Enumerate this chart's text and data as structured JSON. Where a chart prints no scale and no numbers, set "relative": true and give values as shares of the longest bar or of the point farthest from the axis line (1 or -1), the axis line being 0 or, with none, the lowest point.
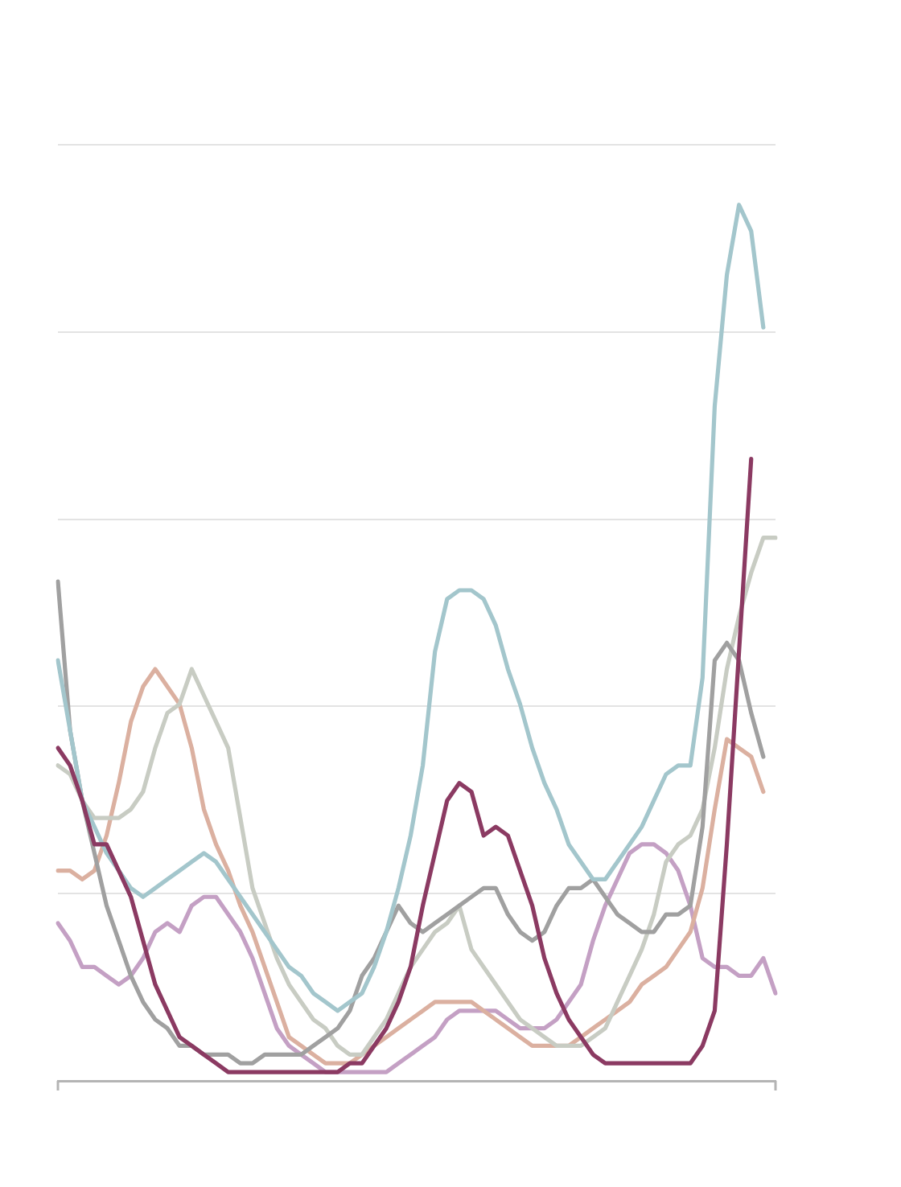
{
  "chart_data": {
    "type": "line",
    "relative": true,
    "grid": "y",
    "marker": "none",
    "line_style": "solid",
    "categories": [
      null,
      null,
      null,
      null,
      null,
      null,
      null,
      null,
      null,
      null,
      null,
      null,
      null,
      null,
      null,
      null,
      null,
      null,
      null,
      null,
      null,
      null,
      null,
      null,
      null,
      null,
      null,
      null,
      null,
      null,
      null,
      null,
      null,
      null,
      null,
      null,
      null,
      null,
      null,
      null,
      null,
      null,
      null,
      null,
      null,
      null,
      null,
      null,
      null,
      null,
      null,
      null,
      null,
      null,
      null,
      null,
      null,
      null,
      null,
      null
    ],
    "series": [
      {
        "color": "#8b3a62",
        "values": [
          0.38,
          0.36,
          0.32,
          0.27,
          0.27,
          0.24,
          0.21,
          0.16,
          0.11,
          0.08,
          0.05,
          0.04,
          0.03,
          0.02,
          0.01,
          0.01,
          0.01,
          0.01,
          0.01,
          0.01,
          0.01,
          0.01,
          0.01,
          0.01,
          0.02,
          0.02,
          0.04,
          0.06,
          0.09,
          0.13,
          0.2,
          0.26,
          0.32,
          0.34,
          0.33,
          0.28,
          0.29,
          0.28,
          0.24,
          0.2,
          0.14,
          0.1,
          0.07,
          0.05,
          0.03,
          0.02,
          0.02,
          0.02,
          0.02,
          0.02,
          0.02,
          0.02,
          0.02,
          0.04,
          0.08,
          0.27,
          0.49,
          0.71,
          null,
          null
        ]
      },
      {
        "color": "#a3c6cc",
        "values": [
          0.48,
          0.4,
          0.32,
          0.29,
          0.26,
          0.24,
          0.22,
          0.21,
          0.22,
          0.23,
          0.24,
          0.25,
          0.26,
          0.25,
          0.23,
          0.21,
          0.19,
          0.17,
          0.15,
          0.13,
          0.12,
          0.1,
          0.09,
          0.08,
          0.09,
          0.1,
          0.13,
          0.17,
          0.22,
          0.28,
          0.36,
          0.49,
          0.55,
          0.56,
          0.56,
          0.55,
          0.52,
          0.47,
          0.43,
          0.38,
          0.34,
          0.31,
          0.27,
          0.25,
          0.23,
          0.23,
          0.25,
          0.27,
          0.29,
          0.32,
          0.35,
          0.36,
          0.36,
          0.46,
          0.77,
          0.92,
          1,
          0.97,
          0.86,
          null
        ]
      },
      {
        "color": "#a0a0a0",
        "values": [
          0.57,
          0.4,
          0.32,
          0.26,
          0.2,
          0.16,
          0.12,
          0.09,
          0.07,
          0.06,
          0.04,
          0.04,
          0.03,
          0.03,
          0.03,
          0.02,
          0.02,
          0.03,
          0.03,
          0.03,
          0.03,
          0.04,
          0.05,
          0.06,
          0.08,
          0.12,
          0.14,
          0.17,
          0.2,
          0.18,
          0.17,
          0.18,
          0.19,
          0.2,
          0.21,
          0.22,
          0.22,
          0.19,
          0.17,
          0.16,
          0.17,
          0.2,
          0.22,
          0.22,
          0.23,
          0.21,
          0.19,
          0.18,
          0.17,
          0.17,
          0.19,
          0.19,
          0.2,
          0.29,
          0.48,
          0.5,
          0.48,
          0.42,
          0.37,
          null
        ]
      },
      {
        "color": "#c8ccc3",
        "values": [
          0.36,
          0.35,
          0.32,
          0.3,
          0.3,
          0.3,
          0.31,
          0.33,
          0.38,
          0.42,
          0.43,
          0.47,
          0.44,
          0.41,
          0.38,
          0.3,
          0.22,
          0.18,
          0.14,
          0.11,
          0.09,
          0.07,
          0.06,
          0.04,
          0.03,
          0.03,
          0.05,
          0.07,
          0.1,
          0.13,
          0.15,
          0.17,
          0.18,
          0.2,
          0.15,
          0.13,
          0.11,
          0.09,
          0.07,
          0.06,
          0.05,
          0.04,
          0.04,
          0.04,
          0.05,
          0.06,
          0.09,
          0.12,
          0.15,
          0.19,
          0.25,
          0.27,
          0.28,
          0.31,
          0.38,
          0.47,
          0.53,
          0.58,
          0.62,
          0.62
        ]
      },
      {
        "color": "#dbb0a0",
        "values": [
          0.24,
          0.24,
          0.23,
          0.24,
          0.28,
          0.34,
          0.41,
          0.45,
          0.47,
          0.45,
          0.43,
          0.38,
          0.31,
          0.27,
          0.24,
          0.2,
          0.17,
          0.13,
          0.09,
          0.05,
          0.04,
          0.03,
          0.02,
          0.02,
          0.02,
          0.03,
          0.04,
          0.05,
          0.06,
          0.07,
          0.08,
          0.09,
          0.09,
          0.09,
          0.09,
          0.08,
          0.07,
          0.06,
          0.05,
          0.04,
          0.04,
          0.04,
          0.04,
          0.05,
          0.06,
          0.07,
          0.08,
          0.09,
          0.11,
          0.12,
          0.13,
          0.15,
          0.17,
          0.22,
          0.31,
          0.39,
          0.38,
          0.37,
          0.33,
          null
        ]
      },
      {
        "color": "#c4a0c4",
        "values": [
          0.18,
          0.16,
          0.13,
          0.13,
          0.12,
          0.11,
          0.12,
          0.14,
          0.17,
          0.18,
          0.17,
          0.2,
          0.21,
          0.21,
          0.19,
          0.17,
          0.14,
          0.1,
          0.06,
          0.04,
          0.03,
          0.02,
          0.01,
          0.01,
          0.01,
          0.01,
          0.01,
          0.01,
          0.02,
          0.03,
          0.04,
          0.05,
          0.07,
          0.08,
          0.08,
          0.08,
          0.08,
          0.07,
          0.06,
          0.06,
          0.06,
          0.07,
          0.09,
          0.11,
          0.16,
          0.2,
          0.23,
          0.26,
          0.27,
          0.27,
          0.26,
          0.24,
          0.2,
          0.14,
          0.13,
          0.13,
          0.12,
          0.12,
          0.14,
          0.1
        ]
      }
    ]
  }
}
